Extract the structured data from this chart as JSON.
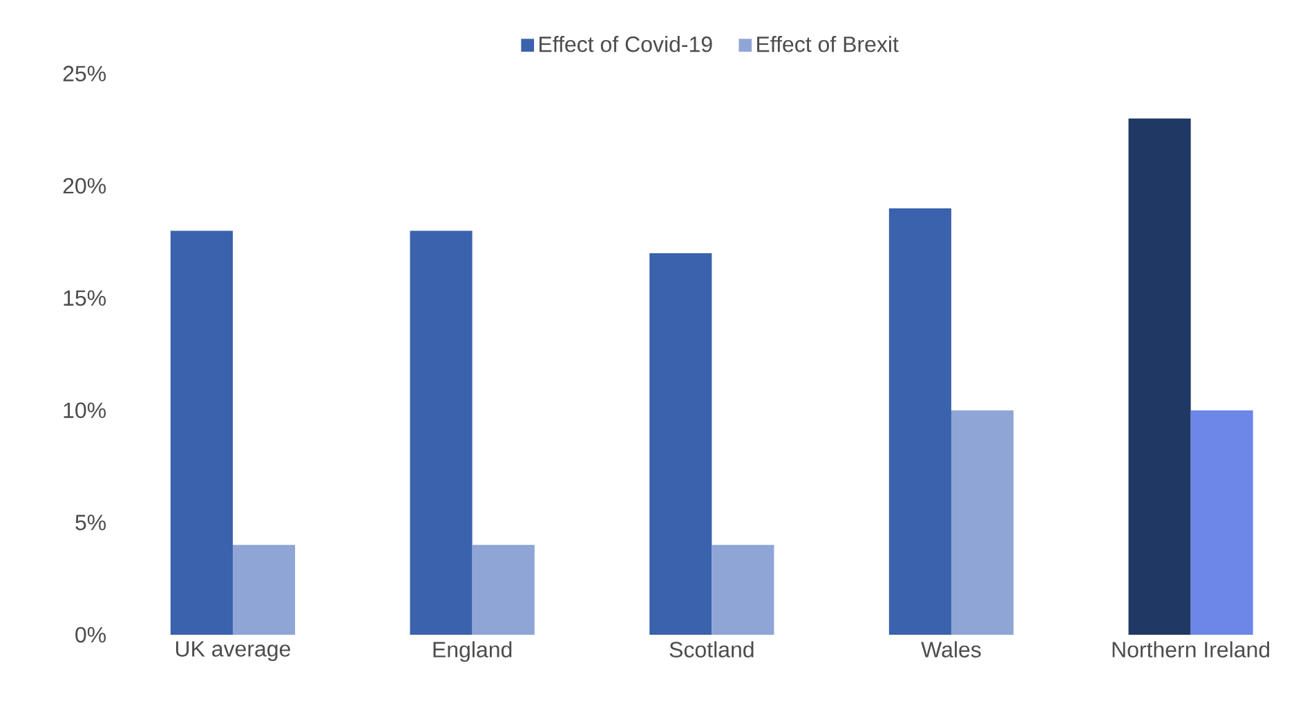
{
  "chart_data": {
    "type": "bar",
    "categories": [
      "UK average",
      "England",
      "Scotland",
      "Wales",
      "Northern Ireland"
    ],
    "series": [
      {
        "name": "Effect of Covid-19",
        "color": "#3a62ad",
        "colors": [
          "#3a62ad",
          "#3a62ad",
          "#3a62ad",
          "#3a62ad",
          "#1f3864"
        ],
        "values": [
          18,
          18,
          17,
          19,
          23
        ]
      },
      {
        "name": "Effect of Brexit",
        "color": "#8fa5d6",
        "colors": [
          "#8fa5d6",
          "#8fa5d6",
          "#8fa5d6",
          "#8fa5d6",
          "#6d87e8"
        ],
        "values": [
          4,
          4,
          4,
          10,
          10
        ]
      }
    ],
    "ylim": [
      0,
      25
    ],
    "yticks": [
      {
        "value": 0,
        "label": "0%"
      },
      {
        "value": 5,
        "label": "5%"
      },
      {
        "value": 10,
        "label": "10%"
      },
      {
        "value": 15,
        "label": "15%"
      },
      {
        "value": 20,
        "label": "20%"
      },
      {
        "value": 25,
        "label": "25%"
      }
    ],
    "grid": false,
    "legend": "top"
  }
}
